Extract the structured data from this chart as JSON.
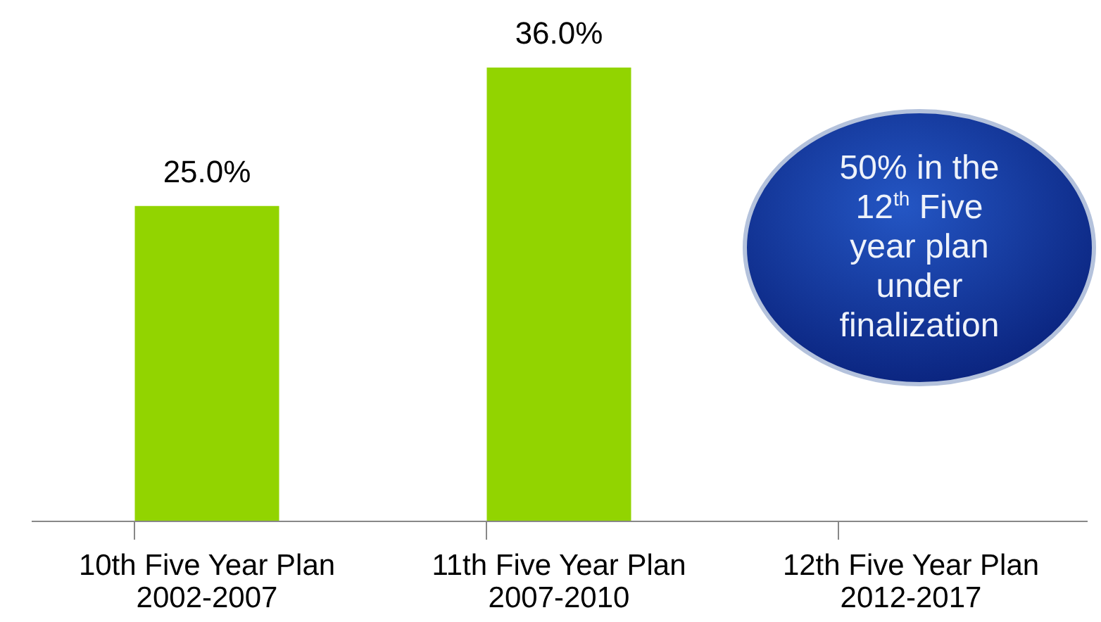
{
  "chart_data": {
    "type": "bar",
    "categories": [
      "10th Five Year Plan\n2002-2007",
      "11th Five Year Plan\n2007-2010",
      "12th Five Year Plan\n2012-2017"
    ],
    "values": [
      25.0,
      36.0,
      null
    ],
    "value_labels": [
      "25.0%",
      "36.0%",
      null
    ],
    "color": "#92d400",
    "annotations": [
      "50% in the 12$^{th}$ Five year plan under finalization"
    ]
  }
}
